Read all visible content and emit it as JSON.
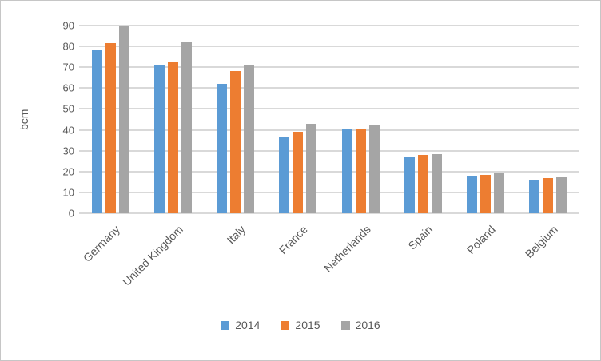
{
  "chart_data": {
    "type": "bar",
    "title": "",
    "xlabel": "",
    "ylabel": "bcm",
    "ylim": [
      0,
      90
    ],
    "ytick_step": 10,
    "grid": "horizontal",
    "gridline_color": "#d9d9d9",
    "axis_text_color": "#595959",
    "legend_position": "bottom",
    "categories": [
      "Germany",
      "United Kingdom",
      "Italy",
      "France",
      "Netherlands",
      "Spain",
      "Poland",
      "Belgium"
    ],
    "series": [
      {
        "name": "2014",
        "color": "#5B9BD5",
        "values": [
          78,
          71,
          62,
          36.5,
          40.5,
          27,
          18,
          16
        ]
      },
      {
        "name": "2015",
        "color": "#ED7D31",
        "values": [
          81.5,
          72.5,
          68,
          39,
          40.5,
          28,
          18.5,
          17
        ]
      },
      {
        "name": "2016",
        "color": "#A5A5A5",
        "values": [
          89.5,
          82,
          71,
          43,
          42,
          28.5,
          19.5,
          17.5
        ]
      }
    ]
  }
}
